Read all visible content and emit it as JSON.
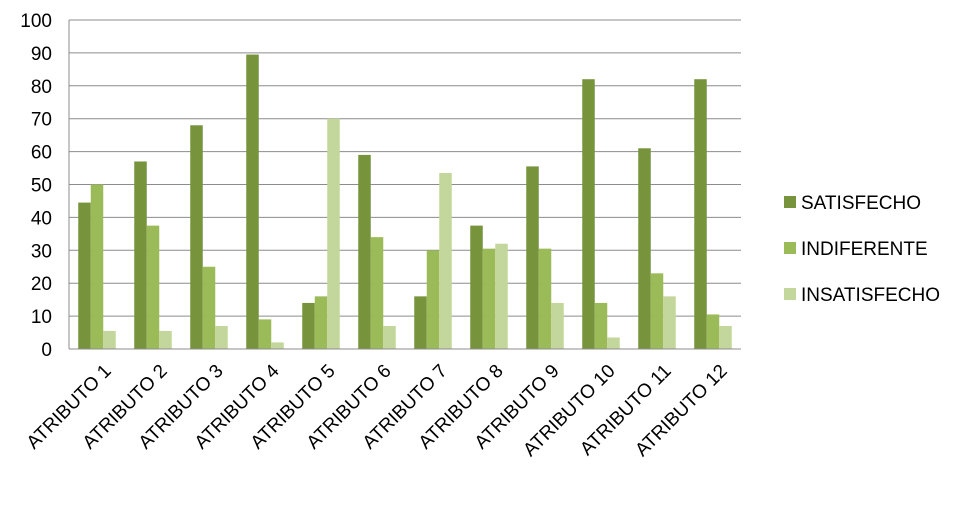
{
  "chart_data": {
    "type": "bar",
    "title": "",
    "xlabel": "",
    "ylabel": "",
    "ylim": [
      0,
      100
    ],
    "yticks": [
      0,
      10,
      20,
      30,
      40,
      50,
      60,
      70,
      80,
      90,
      100
    ],
    "grid": true,
    "legend_position": "right",
    "categories": [
      "ATRIBUTO 1",
      "ATRIBUTO 2",
      "ATRIBUTO 3",
      "ATRIBUTO 4",
      "ATRIBUTO 5",
      "ATRIBUTO 6",
      "ATRIBUTO 7",
      "ATRIBUTO 8",
      "ATRIBUTO 9",
      "ATRIBUTO 10",
      "ATRIBUTO 11",
      "ATRIBUTO 12"
    ],
    "series": [
      {
        "name": "SATISFECHO",
        "color": "#77933c",
        "values": [
          44.5,
          57,
          68,
          89.5,
          14,
          59,
          16,
          37.5,
          55.5,
          82,
          61,
          82
        ]
      },
      {
        "name": "INDIFERENTE",
        "color": "#9bbb59",
        "values": [
          50,
          37.5,
          25,
          9,
          16,
          34,
          30,
          30.5,
          30.5,
          14,
          23,
          10.5
        ]
      },
      {
        "name": "INSATISFECHO",
        "color": "#c3d69b",
        "values": [
          5.5,
          5.5,
          7,
          2,
          70,
          7,
          53.5,
          32,
          14,
          3.5,
          16,
          7
        ]
      }
    ]
  }
}
